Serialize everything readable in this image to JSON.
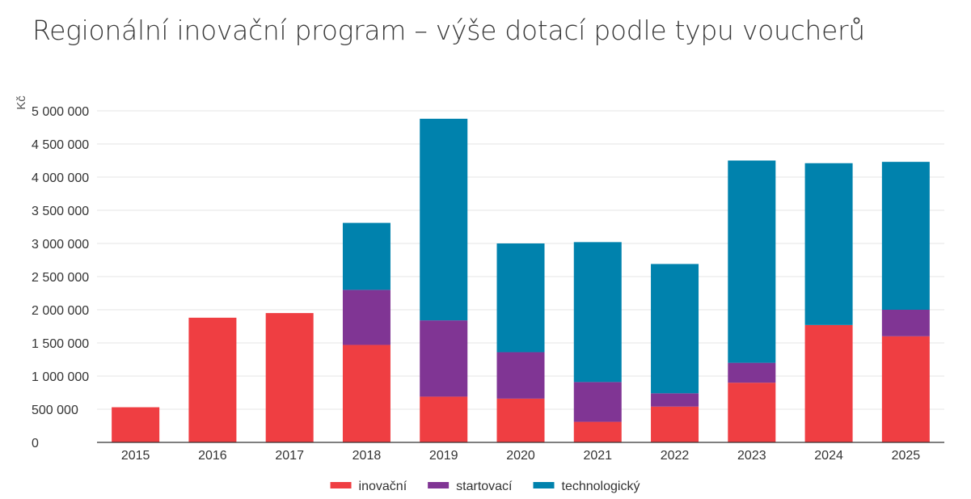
{
  "chart_data": {
    "type": "bar",
    "stacked": true,
    "title": "Regionální inovační program – výše dotací podle typu voucherů",
    "xlabel": "",
    "ylabel": "Kč",
    "ylim": [
      0,
      5000000
    ],
    "yticks": [
      0,
      500000,
      1000000,
      1500000,
      2000000,
      2500000,
      3000000,
      3500000,
      4000000,
      4500000,
      5000000
    ],
    "ytick_labels": [
      "0",
      "500 000",
      "1 000 000",
      "1 500 000",
      "2 000 000",
      "2 500 000",
      "3 000 000",
      "3 500 000",
      "4 000 000",
      "4 500 000",
      "5 000 000"
    ],
    "categories": [
      "2015",
      "2016",
      "2017",
      "2018",
      "2019",
      "2020",
      "2021",
      "2022",
      "2023",
      "2024",
      "2025"
    ],
    "series": [
      {
        "name": "inovační",
        "color": "#ef3e42",
        "values": [
          530000,
          1880000,
          1950000,
          1470000,
          690000,
          660000,
          310000,
          540000,
          900000,
          1770000,
          1600000
        ]
      },
      {
        "name": "startovací",
        "color": "#803594",
        "values": [
          0,
          0,
          0,
          830000,
          1150000,
          700000,
          600000,
          200000,
          300000,
          0,
          400000
        ]
      },
      {
        "name": "technologický",
        "color": "#0082ad",
        "values": [
          0,
          0,
          0,
          1010000,
          3040000,
          1640000,
          2110000,
          1950000,
          3050000,
          2440000,
          2230000
        ]
      }
    ],
    "legend_position": "bottom-center",
    "grid": true
  }
}
